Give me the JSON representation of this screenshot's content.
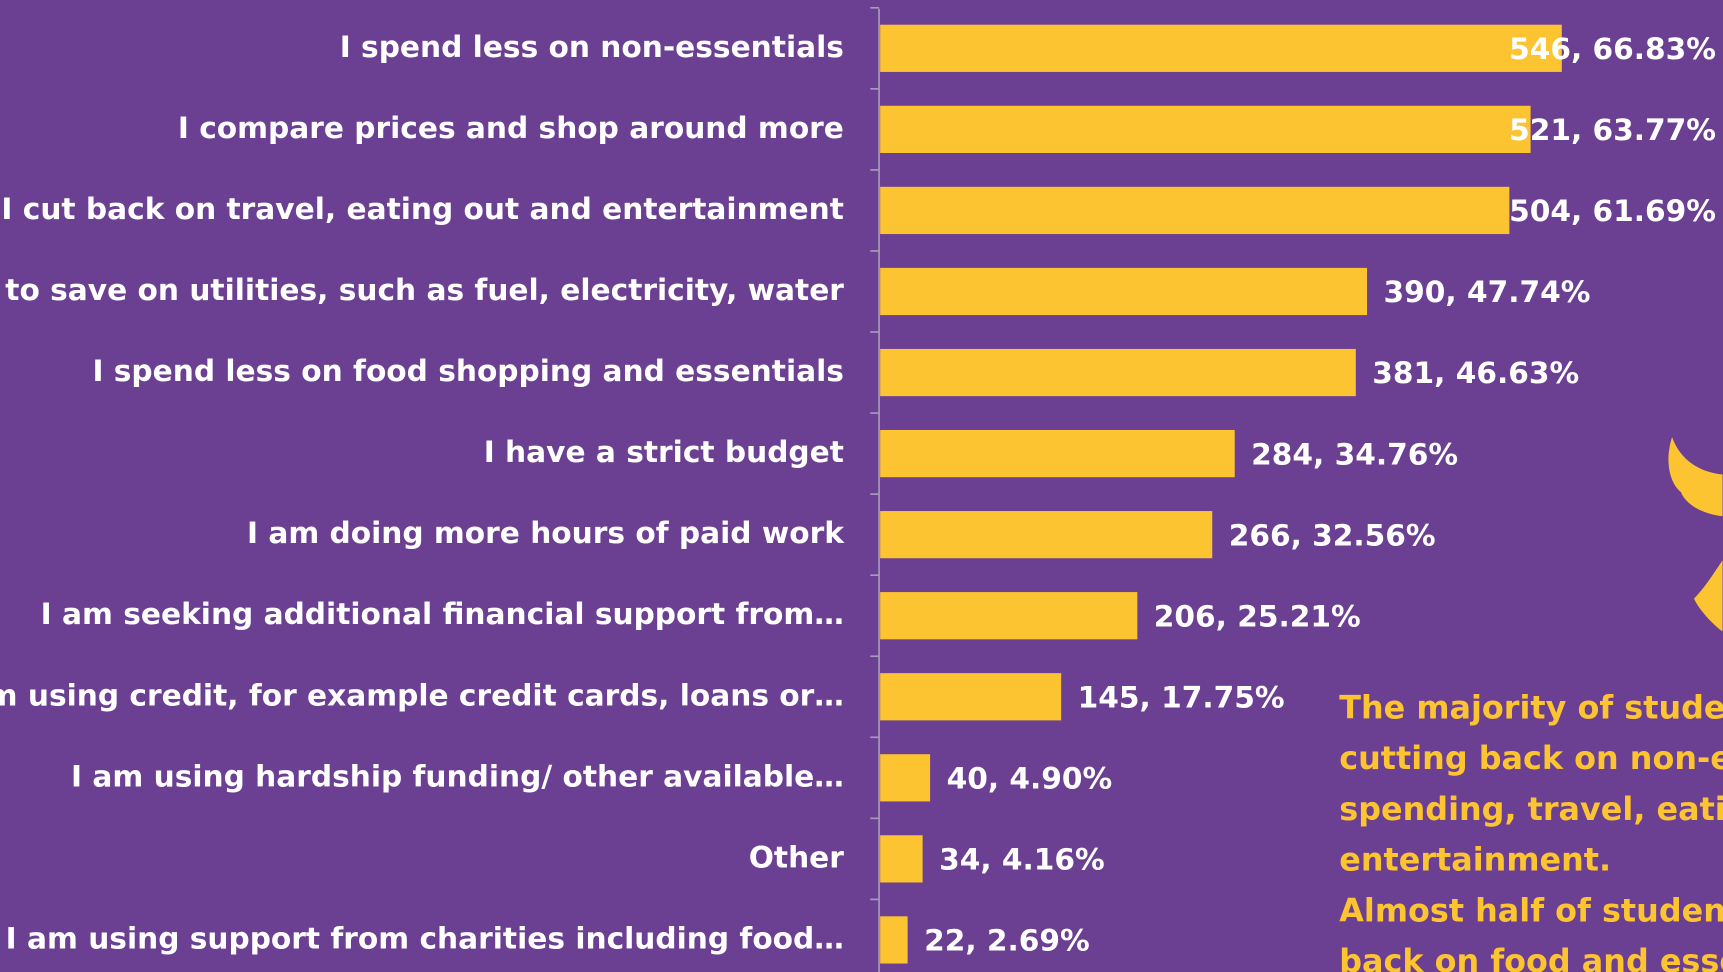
{
  "chart_data": {
    "type": "bar",
    "orientation": "horizontal",
    "categories": [
      "I spend less on non-essentials",
      "I compare prices and shop around more",
      "I cut back on travel, eating out and entertainment",
      "I try to save on utilities, such as fuel, electricity, water",
      "I spend less on food shopping and essentials",
      "I have a strict budget",
      "I am doing more hours of paid work",
      "I am seeking additional financial support from…",
      "I am using credit, for example credit cards, loans or…",
      "I am using hardship funding/ other available…",
      "Other",
      "I am using support from charities including food…"
    ],
    "values": [
      546,
      521,
      504,
      390,
      381,
      284,
      266,
      206,
      145,
      40,
      34,
      22
    ],
    "value_labels": [
      "546, 66.83%",
      "521, 63.77%",
      "504, 61.69%",
      "390, 47.74%",
      "381, 46.63%",
      "284, 34.76%",
      "266, 32.56%",
      "206, 25.21%",
      "145, 17.75%",
      "40, 4.90%",
      "34, 4.16%",
      "22, 2.69%"
    ],
    "color": "#fdc431",
    "xlim": [
      0,
      600
    ],
    "annotation": [
      "The majority of studen",
      "cutting back on non-e",
      "spending, travel, eatin",
      "entertainment.",
      "Almost half of student",
      "back on food and esse"
    ]
  }
}
